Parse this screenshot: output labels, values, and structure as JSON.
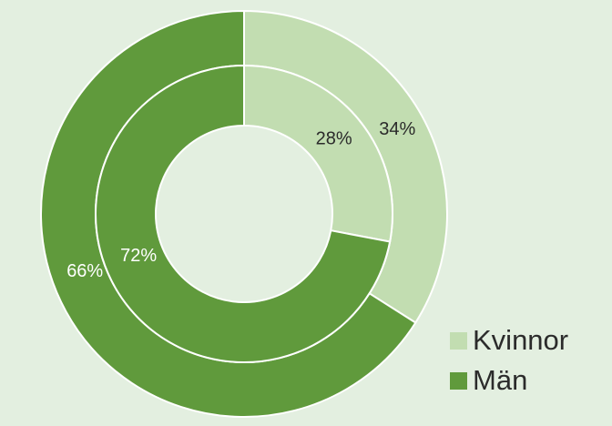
{
  "chart_data": {
    "type": "donut",
    "title": "",
    "categories": [
      "Kvinnor",
      "Män"
    ],
    "colors": {
      "Kvinnor": "#c2ddb1",
      "Män": "#609a3c",
      "background": "#e3efe0",
      "separator": "#ffffff"
    },
    "series": [
      {
        "ring": "outer",
        "values": [
          34,
          66
        ],
        "labels": [
          "34%",
          "66%"
        ]
      },
      {
        "ring": "inner",
        "values": [
          28,
          72
        ],
        "labels": [
          "28%",
          "72%"
        ]
      }
    ],
    "legend": {
      "position": "bottom-right",
      "entries": [
        "Kvinnor",
        "Män"
      ]
    }
  }
}
